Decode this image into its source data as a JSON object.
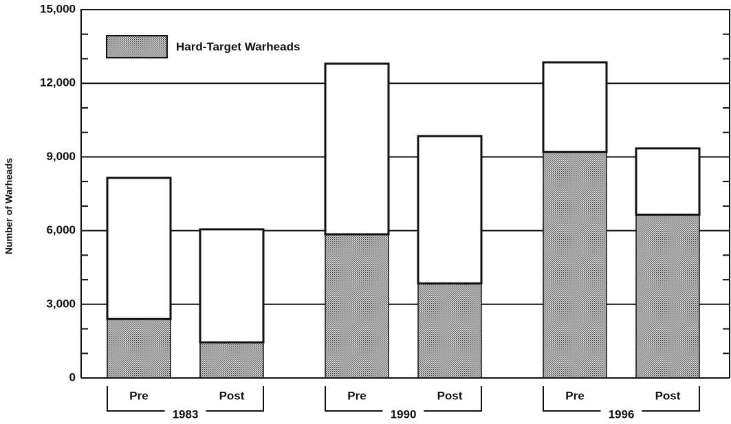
{
  "chart_data": {
    "type": "stacked_bar",
    "y_label": "Number of Warheads",
    "categories": [
      "Pre",
      "Post",
      "Pre",
      "Post",
      "Pre",
      "Post"
    ],
    "groups": [
      "1983",
      "1990",
      "1996"
    ],
    "series": [
      {
        "name": "Hard-Target Warheads",
        "color": "#9a9a9a",
        "values": [
          2400,
          1450,
          5850,
          3850,
          9200,
          6650
        ]
      },
      {
        "color": "#ffffff",
        "values": [
          5750,
          4600,
          6950,
          6000,
          3650,
          2700
        ]
      }
    ],
    "ylim": [
      0,
      15000
    ],
    "yticks": [
      0,
      {
        "value": 3000,
        "label": "3,000"
      },
      {
        "value": 6000,
        "label": "6,000"
      },
      {
        "value": 9000,
        "label": "9,000"
      },
      {
        "value": 12000,
        "label": "12,000"
      },
      {
        "value": 15000,
        "label": "15,000"
      }
    ],
    "minor_yticks": [
      1000,
      2000,
      4000,
      5000,
      7000,
      8000,
      10000,
      11000,
      13000,
      14000
    ],
    "grid": true,
    "legend": "upper left"
  }
}
